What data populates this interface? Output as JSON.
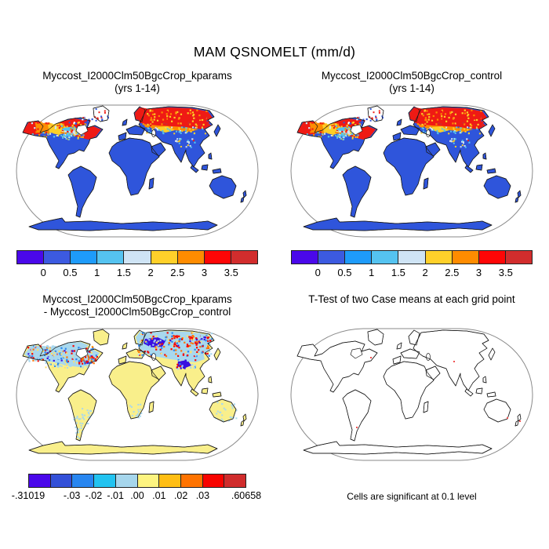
{
  "title": "MAM QSNOMELT (mm/d)",
  "panels": [
    {
      "id": "kparams",
      "title_line1": "Myccost_I2000Clm50BgcCrop_kparams",
      "title_line2": "(yrs 1-14)",
      "map_style": "filled",
      "colorbar": "abs"
    },
    {
      "id": "control",
      "title_line1": "Myccost_I2000Clm50BgcCrop_control",
      "title_line2": "(yrs 1-14)",
      "map_style": "filled",
      "colorbar": "abs"
    },
    {
      "id": "difference",
      "title_line1": "Myccost_I2000Clm50BgcCrop_kparams",
      "title_line2": "- Myccost_I2000Clm50BgcCrop_control",
      "map_style": "diff",
      "colorbar": "diff"
    },
    {
      "id": "ttest",
      "title_line1": "T-Test of two Case means at each grid point",
      "title_line2": "",
      "map_style": "outline",
      "caption": "Cells are significant at 0.1 level"
    }
  ],
  "colorbars": {
    "abs": {
      "colors": [
        "#4a08ea",
        "#3c5ae0",
        "#1e9bfa",
        "#55c3f0",
        "#cfe4f5",
        "#ffd02a",
        "#ff8c00",
        "#fe0606",
        "#d22d2d"
      ],
      "ticks": [
        {
          "label": "0",
          "pos": 0.1111
        },
        {
          "label": "0.5",
          "pos": 0.2222
        },
        {
          "label": "1",
          "pos": 0.3333
        },
        {
          "label": "1.5",
          "pos": 0.4444
        },
        {
          "label": "2",
          "pos": 0.5556
        },
        {
          "label": "2.5",
          "pos": 0.6667
        },
        {
          "label": "3",
          "pos": 0.7778
        },
        {
          "label": "3.5",
          "pos": 0.8889
        }
      ]
    },
    "diff": {
      "colors": [
        "#4a08ea",
        "#3350d8",
        "#2886f0",
        "#22c3f0",
        "#a6d6ec",
        "#fdf480",
        "#ffbe14",
        "#ff7300",
        "#f80400",
        "#d02c2c"
      ],
      "ticks": [
        {
          "label": "-.31019",
          "pos": 0
        },
        {
          "label": "-.03",
          "pos": 0.2
        },
        {
          "label": "-.02",
          "pos": 0.3
        },
        {
          "label": "-.01",
          "pos": 0.4
        },
        {
          "label": ".00",
          "pos": 0.5
        },
        {
          "label": ".01",
          "pos": 0.6
        },
        {
          "label": ".02",
          "pos": 0.7
        },
        {
          "label": ".03",
          "pos": 0.8
        },
        {
          "label": ".60658",
          "pos": 1
        }
      ]
    }
  },
  "map_colors": {
    "frame": "#8a8a8a",
    "coast": "#1a1a1a",
    "land_base": "#2f55db",
    "diff_land": "#f9ef8b",
    "heat": {
      "red": "#ef1a14",
      "darkred": "#d02c2c",
      "orange": "#fd8d02",
      "yellow": "#fdcf27",
      "cyan": "#52c2ee",
      "pale": "#cfe3f2",
      "blue": "#2f55db",
      "white": "#ffffff"
    },
    "diff_palette": {
      "lb": "#a8d8ee",
      "b": "#2886f0",
      "v": "#3a10e0",
      "r": "#f80400",
      "o": "#ff7300",
      "y": "#ffe06a"
    },
    "sig_dot": "#f05050"
  },
  "chart_data": [
    {
      "type": "heatmap",
      "subtype": "global-map",
      "projection": "Robinson",
      "title": "Myccost_I2000Clm50BgcCrop_kparams",
      "subtitle": "(yrs 1-14)",
      "variable": "QSNOMELT",
      "season": "MAM",
      "units": "mm/d",
      "levels": [
        0,
        0.5,
        1,
        1.5,
        2,
        2.5,
        3,
        3.5
      ],
      "palette": [
        "#4a08ea",
        "#3c5ae0",
        "#1e9bfa",
        "#55c3f0",
        "#cfe4f5",
        "#ffd02a",
        "#ff8c00",
        "#fe0606",
        "#d22d2d"
      ],
      "pattern": "Snow-melt 2-3.5+ mm/d (red/orange/yellow) across boreal North America, Scandinavia and Siberia; 0-0.5 mm/d (blue) over all other land and Antarctica; Greenland interior missing (white)"
    },
    {
      "type": "heatmap",
      "subtype": "global-map",
      "projection": "Robinson",
      "title": "Myccost_I2000Clm50BgcCrop_control",
      "subtitle": "(yrs 1-14)",
      "variable": "QSNOMELT",
      "season": "MAM",
      "units": "mm/d",
      "levels": [
        0,
        0.5,
        1,
        1.5,
        2,
        2.5,
        3,
        3.5
      ],
      "palette": [
        "#4a08ea",
        "#3c5ae0",
        "#1e9bfa",
        "#55c3f0",
        "#cfe4f5",
        "#ffd02a",
        "#ff8c00",
        "#fe0606",
        "#d22d2d"
      ],
      "pattern": "Visually identical to kparams panel"
    },
    {
      "type": "heatmap",
      "subtype": "global-map-difference",
      "projection": "Robinson",
      "title": "Myccost_I2000Clm50BgcCrop_kparams - Myccost_I2000Clm50BgcCrop_control",
      "min": -0.31019,
      "max": 0.60658,
      "levels": [
        -0.31019,
        -0.03,
        -0.02,
        -0.01,
        0,
        0.01,
        0.02,
        0.03,
        0.60658
      ],
      "palette": [
        "#4a08ea",
        "#3350d8",
        "#2886f0",
        "#22c3f0",
        "#a6d6ec",
        "#fdf480",
        "#ffbe14",
        "#ff7300",
        "#f80400",
        "#d02c2c"
      ],
      "pattern": "Near-zero (pale yellow) over most land; noisy mix of small positive (red/orange) and negative (light/dark blue) differences over snow regions of Canada, northern US, Europe, Russia and Tibet"
    },
    {
      "type": "map",
      "subtype": "significance",
      "projection": "Robinson",
      "title": "T-Test of two Case means at each grid point",
      "caption": "Cells are significant at 0.1 level",
      "pattern": "Coastline outline only; a handful of isolated significant (red) cells in eastern Canada, central Asia, southern South America, southeastern Australia and New Zealand"
    }
  ]
}
